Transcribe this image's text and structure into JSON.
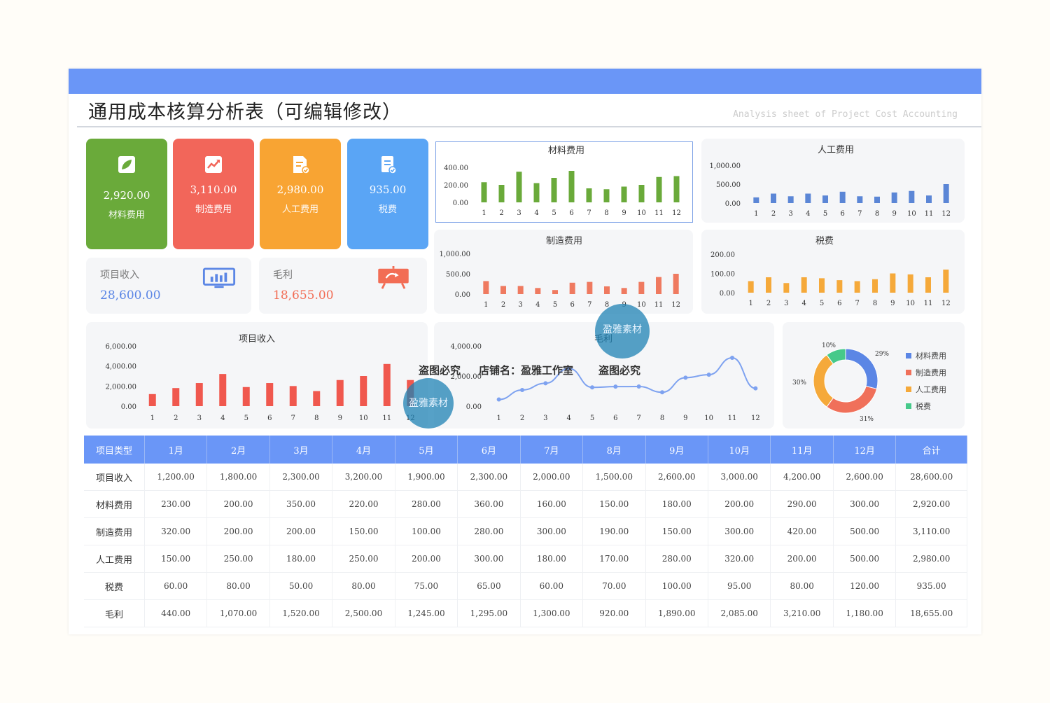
{
  "header": {
    "title": "通用成本核算分析表（可编辑修改）",
    "subtitle": "Analysis sheet of Project Cost Accounting"
  },
  "cards": [
    {
      "value": "2,920.00",
      "label": "材料费用",
      "icon": "leaf-icon",
      "color": "#6aaa3a"
    },
    {
      "value": "3,110.00",
      "label": "制造费用",
      "icon": "trend-chart-icon",
      "color": "#f2665a"
    },
    {
      "value": "2,980.00",
      "label": "人工费用",
      "icon": "document-check-icon",
      "color": "#f8a433"
    },
    {
      "value": "935.00",
      "label": "税费",
      "icon": "invoice-icon",
      "color": "#5aa5f5"
    }
  ],
  "kpis": {
    "income": {
      "label": "项目收入",
      "value": "28,600.00",
      "icon": "monitor-chart-icon",
      "color": "#5b86e5"
    },
    "profit": {
      "label": "毛利",
      "value": "18,655.00",
      "icon": "presentation-board-icon",
      "color": "#f26d55"
    }
  },
  "chart_data": [
    {
      "type": "bar",
      "title": "材料费用",
      "categories": [
        "1",
        "2",
        "3",
        "4",
        "5",
        "6",
        "7",
        "8",
        "9",
        "10",
        "11",
        "12"
      ],
      "values": [
        230,
        200,
        350,
        220,
        280,
        360,
        160,
        150,
        180,
        200,
        290,
        300
      ],
      "ylim": [
        0,
        400
      ],
      "yticks": [
        "400.00",
        "200.00",
        "0.00"
      ],
      "color": "#6aaa3a"
    },
    {
      "type": "bar",
      "title": "人工费用",
      "categories": [
        "1",
        "2",
        "3",
        "4",
        "5",
        "6",
        "7",
        "8",
        "9",
        "10",
        "11",
        "12"
      ],
      "values": [
        150,
        250,
        180,
        250,
        200,
        300,
        180,
        170,
        280,
        320,
        200,
        500
      ],
      "ylim": [
        0,
        1000
      ],
      "yticks": [
        "1,000.00",
        "500.00",
        "0.00"
      ],
      "color": "#5b86d6"
    },
    {
      "type": "bar",
      "title": "制造费用",
      "categories": [
        "1",
        "2",
        "3",
        "4",
        "5",
        "6",
        "7",
        "8",
        "9",
        "10",
        "11",
        "12"
      ],
      "values": [
        320,
        200,
        200,
        150,
        100,
        280,
        300,
        190,
        150,
        300,
        420,
        500
      ],
      "ylim": [
        0,
        1000
      ],
      "yticks": [
        "1,000.00",
        "500.00",
        "0.00"
      ],
      "color": "#ef7a60"
    },
    {
      "type": "bar",
      "title": "税费",
      "categories": [
        "1",
        "2",
        "3",
        "4",
        "5",
        "6",
        "7",
        "8",
        "9",
        "10",
        "11",
        "12"
      ],
      "values": [
        60,
        80,
        50,
        80,
        75,
        65,
        60,
        70,
        100,
        95,
        80,
        120
      ],
      "ylim": [
        0,
        200
      ],
      "yticks": [
        "200.00",
        "100.00",
        "0.00"
      ],
      "color": "#f5a93a"
    },
    {
      "type": "bar",
      "title": "项目收入",
      "categories": [
        "1",
        "2",
        "3",
        "4",
        "5",
        "6",
        "7",
        "8",
        "9",
        "10",
        "11",
        "12"
      ],
      "values": [
        1200,
        1800,
        2300,
        3200,
        1900,
        2300,
        2000,
        1500,
        2600,
        3000,
        4200,
        2600
      ],
      "ylim": [
        0,
        6000
      ],
      "yticks": [
        "6,000.00",
        "4,000.00",
        "2,000.00",
        "0.00"
      ],
      "color": "#f0584e"
    },
    {
      "type": "line",
      "title": "毛利",
      "categories": [
        "1",
        "2",
        "3",
        "4",
        "5",
        "6",
        "7",
        "8",
        "9",
        "10",
        "11",
        "12"
      ],
      "values": [
        440,
        1070,
        1520,
        2500,
        1245,
        1295,
        1300,
        920,
        1890,
        2085,
        3210,
        1180
      ],
      "ylim": [
        0,
        4000
      ],
      "yticks": [
        "4,000.00",
        "2,000.00",
        "0.00"
      ],
      "color": "#7ea2f0"
    },
    {
      "type": "pie",
      "labels": [
        "材料费用",
        "制造费用",
        "人工费用",
        "税费"
      ],
      "values": [
        29,
        31,
        30,
        10
      ],
      "value_labels": [
        "29%",
        "31%",
        "30%",
        "10%"
      ],
      "colors": [
        "#5b86e5",
        "#f0705a",
        "#f5a93a",
        "#46c98a"
      ],
      "legend": "right"
    }
  ],
  "table": {
    "headers": [
      "项目类型",
      "1月",
      "2月",
      "3月",
      "4月",
      "5月",
      "6月",
      "7月",
      "8月",
      "9月",
      "10月",
      "11月",
      "12月",
      "合计"
    ],
    "rows": [
      [
        "项目收入",
        "1,200.00",
        "1,800.00",
        "2,300.00",
        "3,200.00",
        "1,900.00",
        "2,300.00",
        "2,000.00",
        "1,500.00",
        "2,600.00",
        "3,000.00",
        "4,200.00",
        "2,600.00",
        "28,600.00"
      ],
      [
        "材料费用",
        "230.00",
        "200.00",
        "350.00",
        "220.00",
        "280.00",
        "360.00",
        "160.00",
        "150.00",
        "180.00",
        "200.00",
        "290.00",
        "300.00",
        "2,920.00"
      ],
      [
        "制造费用",
        "320.00",
        "200.00",
        "200.00",
        "150.00",
        "100.00",
        "280.00",
        "300.00",
        "190.00",
        "150.00",
        "300.00",
        "420.00",
        "500.00",
        "3,110.00"
      ],
      [
        "人工费用",
        "150.00",
        "250.00",
        "180.00",
        "250.00",
        "200.00",
        "300.00",
        "180.00",
        "170.00",
        "280.00",
        "320.00",
        "200.00",
        "500.00",
        "2,980.00"
      ],
      [
        "税费",
        "60.00",
        "80.00",
        "50.00",
        "80.00",
        "75.00",
        "65.00",
        "60.00",
        "70.00",
        "100.00",
        "95.00",
        "80.00",
        "120.00",
        "935.00"
      ],
      [
        "毛利",
        "440.00",
        "1,070.00",
        "1,520.00",
        "2,500.00",
        "1,245.00",
        "1,295.00",
        "1,300.00",
        "920.00",
        "1,890.00",
        "2,085.00",
        "3,210.00",
        "1,180.00",
        "18,655.00"
      ]
    ]
  },
  "watermarks": {
    "notice": "盗图必究",
    "shop": "店铺名：盈雅工作室",
    "seal": "盈雅素材"
  }
}
